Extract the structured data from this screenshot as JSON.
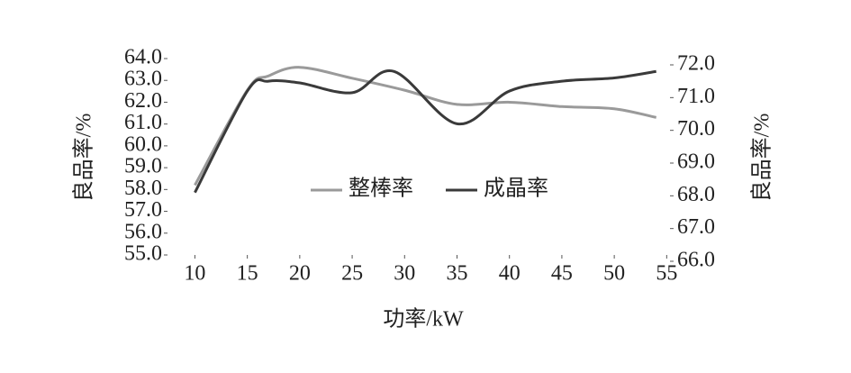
{
  "chart_data": {
    "type": "line",
    "x_label": "功率/kW",
    "y_label": "良品率/%",
    "y2_label": "良品率/%",
    "x": [
      10,
      15,
      17,
      20,
      25,
      30,
      35,
      40,
      45,
      50,
      54
    ],
    "series": [
      {
        "name": "整棒率",
        "color": "#9a9a9a",
        "values": [
          58.2,
          62.55,
          63.2,
          63.6,
          63.1,
          62.55,
          61.9,
          62.0,
          61.8,
          61.7,
          61.3
        ]
      },
      {
        "name": "成晶率",
        "color": "#3a3a3a",
        "axis": "y2",
        "x": [
          10,
          15,
          17,
          20,
          25,
          29,
          35,
          40,
          45,
          50,
          54
        ],
        "values": [
          68.1,
          71.2,
          71.5,
          71.45,
          71.15,
          71.8,
          70.2,
          71.2,
          71.5,
          71.6,
          71.8
        ]
      }
    ],
    "xlim": [
      7.3,
      55.4
    ],
    "xticks": [
      10,
      15,
      20,
      25,
      30,
      35,
      40,
      45,
      50,
      55
    ],
    "ylim": [
      55,
      64
    ],
    "yticks": [
      {
        "value": 55,
        "label": "55.0"
      },
      {
        "value": 56,
        "label": "56.0"
      },
      {
        "value": 57,
        "label": "57.0"
      },
      {
        "value": 58,
        "label": "58.0"
      },
      {
        "value": 59,
        "label": "59.0"
      },
      {
        "value": 60,
        "label": "60.0"
      },
      {
        "value": 61,
        "label": "61.0"
      },
      {
        "value": 62,
        "label": "62.0"
      },
      {
        "value": 63,
        "label": "63.0"
      },
      {
        "value": 64,
        "label": "64.0"
      }
    ],
    "y2lim": [
      66,
      72
    ],
    "y2ticks": [
      {
        "value": 66,
        "label": "66.0"
      },
      {
        "value": 67,
        "label": "67.0"
      },
      {
        "value": 68,
        "label": "68.0"
      },
      {
        "value": 69,
        "label": "69.0"
      },
      {
        "value": 70,
        "label": "70.0"
      },
      {
        "value": 71,
        "label": "71.0"
      },
      {
        "value": 72,
        "label": "72.0"
      }
    ]
  }
}
